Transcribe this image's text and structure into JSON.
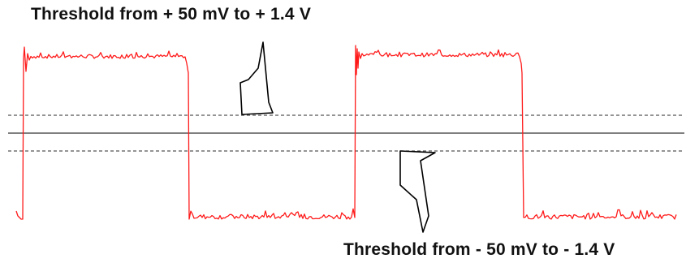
{
  "annotations": {
    "upper_threshold": "Threshold from + 50 mV to + 1.4 V",
    "lower_threshold": "Threshold from - 50 mV to - 1.4 V"
  },
  "colors": {
    "signal": "#ff1a1a",
    "reference_line": "#555555",
    "threshold_line": "#555555",
    "arrow_outline": "#000000",
    "text": "#111111"
  },
  "icons": {
    "upper_arrow": "hollow-arrow-pointing-down-icon",
    "lower_arrow": "hollow-arrow-pointing-up-icon"
  }
}
